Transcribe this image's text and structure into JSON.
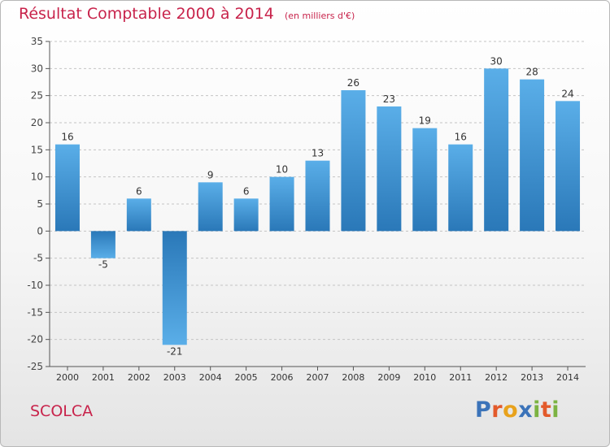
{
  "title": "Résultat Comptable 2000 à 2014",
  "unit_note": "(en milliers d'€)",
  "commune": "SCOLCA",
  "logo": {
    "letters": [
      "P",
      "r",
      "o",
      "x",
      "i",
      "t",
      "i"
    ],
    "colors": [
      "#3b73b9",
      "#e35a2b",
      "#e8a21c",
      "#3b73b9",
      "#7cb342",
      "#e35a2b",
      "#7cb342"
    ]
  },
  "colors": {
    "bar_top": "#5aaee8",
    "bar_bottom": "#2a78b8",
    "title": "#c8234b",
    "axis": "#555555",
    "grid": "#c4c4c4"
  },
  "chart_data": {
    "type": "bar",
    "title": "Résultat Comptable 2000 à 2014",
    "subtitle": "(en milliers d'€)",
    "categories": [
      "2000",
      "2001",
      "2002",
      "2003",
      "2004",
      "2005",
      "2006",
      "2007",
      "2008",
      "2009",
      "2010",
      "2011",
      "2012",
      "2013",
      "2014"
    ],
    "values": [
      16,
      -5,
      6,
      -21,
      9,
      6,
      10,
      13,
      26,
      23,
      19,
      16,
      30,
      28,
      24
    ],
    "ylim": [
      -25,
      35
    ],
    "yticks": [
      35,
      30,
      25,
      20,
      15,
      10,
      5,
      0,
      -5,
      -10,
      -15,
      -20,
      -25
    ],
    "grid": true,
    "xlabel": "",
    "ylabel": ""
  }
}
